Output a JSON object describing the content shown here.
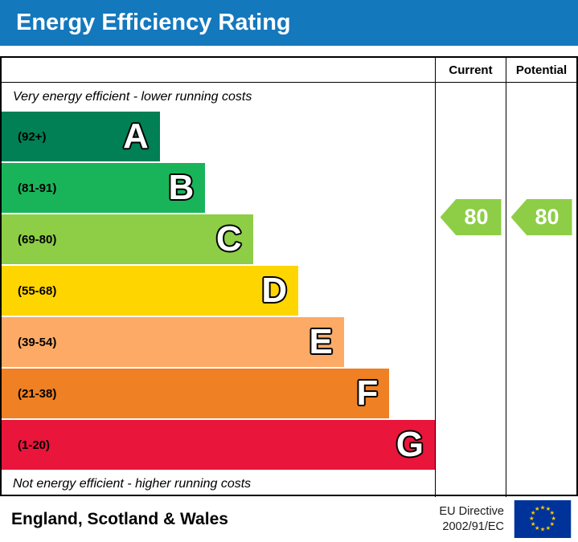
{
  "title": "Energy Efficiency Rating",
  "table": {
    "current_label": "Current",
    "potential_label": "Potential",
    "top_note": "Very energy efficient - lower running costs",
    "bottom_note": "Not energy efficient - higher running costs"
  },
  "bands": [
    {
      "letter": "A",
      "range": "(92+)",
      "color": "#008054",
      "width_pct": 36.5
    },
    {
      "letter": "B",
      "range": "(81-91)",
      "color": "#19b459",
      "width_pct": 47
    },
    {
      "letter": "C",
      "range": "(69-80)",
      "color": "#8dce46",
      "width_pct": 58
    },
    {
      "letter": "D",
      "range": "(55-68)",
      "color": "#ffd500",
      "width_pct": 68.5
    },
    {
      "letter": "E",
      "range": "(39-54)",
      "color": "#fcaa65",
      "width_pct": 79
    },
    {
      "letter": "F",
      "range": "(21-38)",
      "color": "#ef8023",
      "width_pct": 89.5
    },
    {
      "letter": "G",
      "range": "(1-20)",
      "color": "#e9153b",
      "width_pct": 100
    }
  ],
  "ratings": {
    "current": {
      "value": "80",
      "color": "#8dce46"
    },
    "potential": {
      "value": "80",
      "color": "#8dce46"
    }
  },
  "footer": {
    "region": "England, Scotland & Wales",
    "directive_line1": "EU Directive",
    "directive_line2": "2002/91/EC"
  },
  "colors": {
    "title_bg": "#1478bd",
    "title_text": "#ffffff",
    "eu_blue": "#003399",
    "eu_star": "#ffcc00"
  },
  "chart_data": {
    "type": "bar",
    "title": "Energy Efficiency Rating",
    "categories": [
      "A",
      "B",
      "C",
      "D",
      "E",
      "F",
      "G"
    ],
    "band_ranges": [
      "92+",
      "81-91",
      "69-80",
      "55-68",
      "39-54",
      "21-38",
      "1-20"
    ],
    "band_colors": [
      "#008054",
      "#19b459",
      "#8dce46",
      "#ffd500",
      "#fcaa65",
      "#ef8023",
      "#e9153b"
    ],
    "bar_lengths_pct": [
      36.5,
      47,
      58,
      68.5,
      79,
      89.5,
      100
    ],
    "current_rating": 80,
    "potential_rating": 80,
    "current_band": "C",
    "potential_band": "C",
    "scale": [
      1,
      100
    ],
    "top_annotation": "Very energy efficient - lower running costs",
    "bottom_annotation": "Not energy efficient - higher running costs",
    "region_note": "England, Scotland & Wales",
    "directive": "EU Directive 2002/91/EC"
  }
}
